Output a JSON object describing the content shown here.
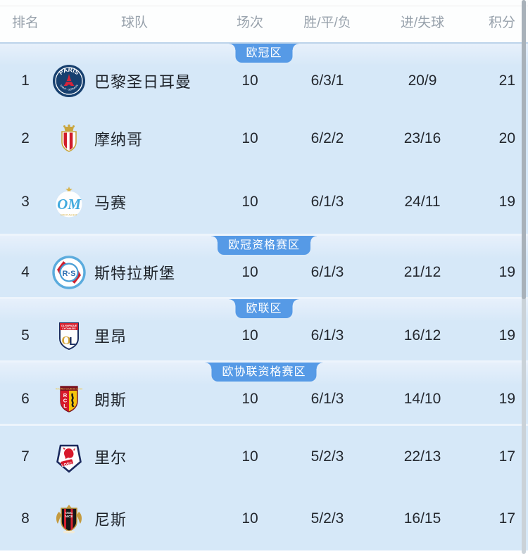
{
  "table": {
    "headers": {
      "rank": "排名",
      "team": "球队",
      "played": "场次",
      "wdl": "胜/平/负",
      "goals": "进/失球",
      "points": "积分"
    },
    "rows": [
      {
        "rank": "1",
        "team": "巴黎圣日耳曼",
        "played": "10",
        "wdl": "6/3/1",
        "goals": "20/9",
        "points": "21",
        "zone_label": "欧冠区",
        "logo": "psg"
      },
      {
        "rank": "2",
        "team": "摩纳哥",
        "played": "10",
        "wdl": "6/2/2",
        "goals": "23/16",
        "points": "20",
        "zone_label": "",
        "logo": "monaco"
      },
      {
        "rank": "3",
        "team": "马赛",
        "played": "10",
        "wdl": "6/1/3",
        "goals": "24/11",
        "points": "19",
        "zone_label": "",
        "logo": "marseille"
      },
      {
        "rank": "4",
        "team": "斯特拉斯堡",
        "played": "10",
        "wdl": "6/1/3",
        "goals": "21/12",
        "points": "19",
        "zone_label": "欧冠资格赛区",
        "logo": "strasbourg"
      },
      {
        "rank": "5",
        "team": "里昂",
        "played": "10",
        "wdl": "6/1/3",
        "goals": "16/12",
        "points": "19",
        "zone_label": "欧联区",
        "logo": "lyon"
      },
      {
        "rank": "6",
        "team": "朗斯",
        "played": "10",
        "wdl": "6/1/3",
        "goals": "14/10",
        "points": "19",
        "zone_label": "欧协联资格赛区",
        "logo": "lens"
      },
      {
        "rank": "7",
        "team": "里尔",
        "played": "10",
        "wdl": "5/2/3",
        "goals": "22/13",
        "points": "17",
        "zone_label": "",
        "logo": "lille"
      },
      {
        "rank": "8",
        "team": "尼斯",
        "played": "10",
        "wdl": "5/2/3",
        "goals": "16/15",
        "points": "17",
        "zone_label": "",
        "logo": "nice"
      }
    ],
    "section_start_rows": [
      3,
      4,
      5,
      6
    ]
  },
  "colors": {
    "body_bg": "#d6e8f8",
    "header_bg": "#fdfefe",
    "header_text": "#98a2ac",
    "cell_text": "#23272e",
    "zone_pill_bg": "#569ae6",
    "zone_pill_text": "#ffffff",
    "section_divider": "#edf4fc",
    "scrollbar_thumb": "#a8b1b9",
    "scrollbar_track": "#cad2d8"
  }
}
